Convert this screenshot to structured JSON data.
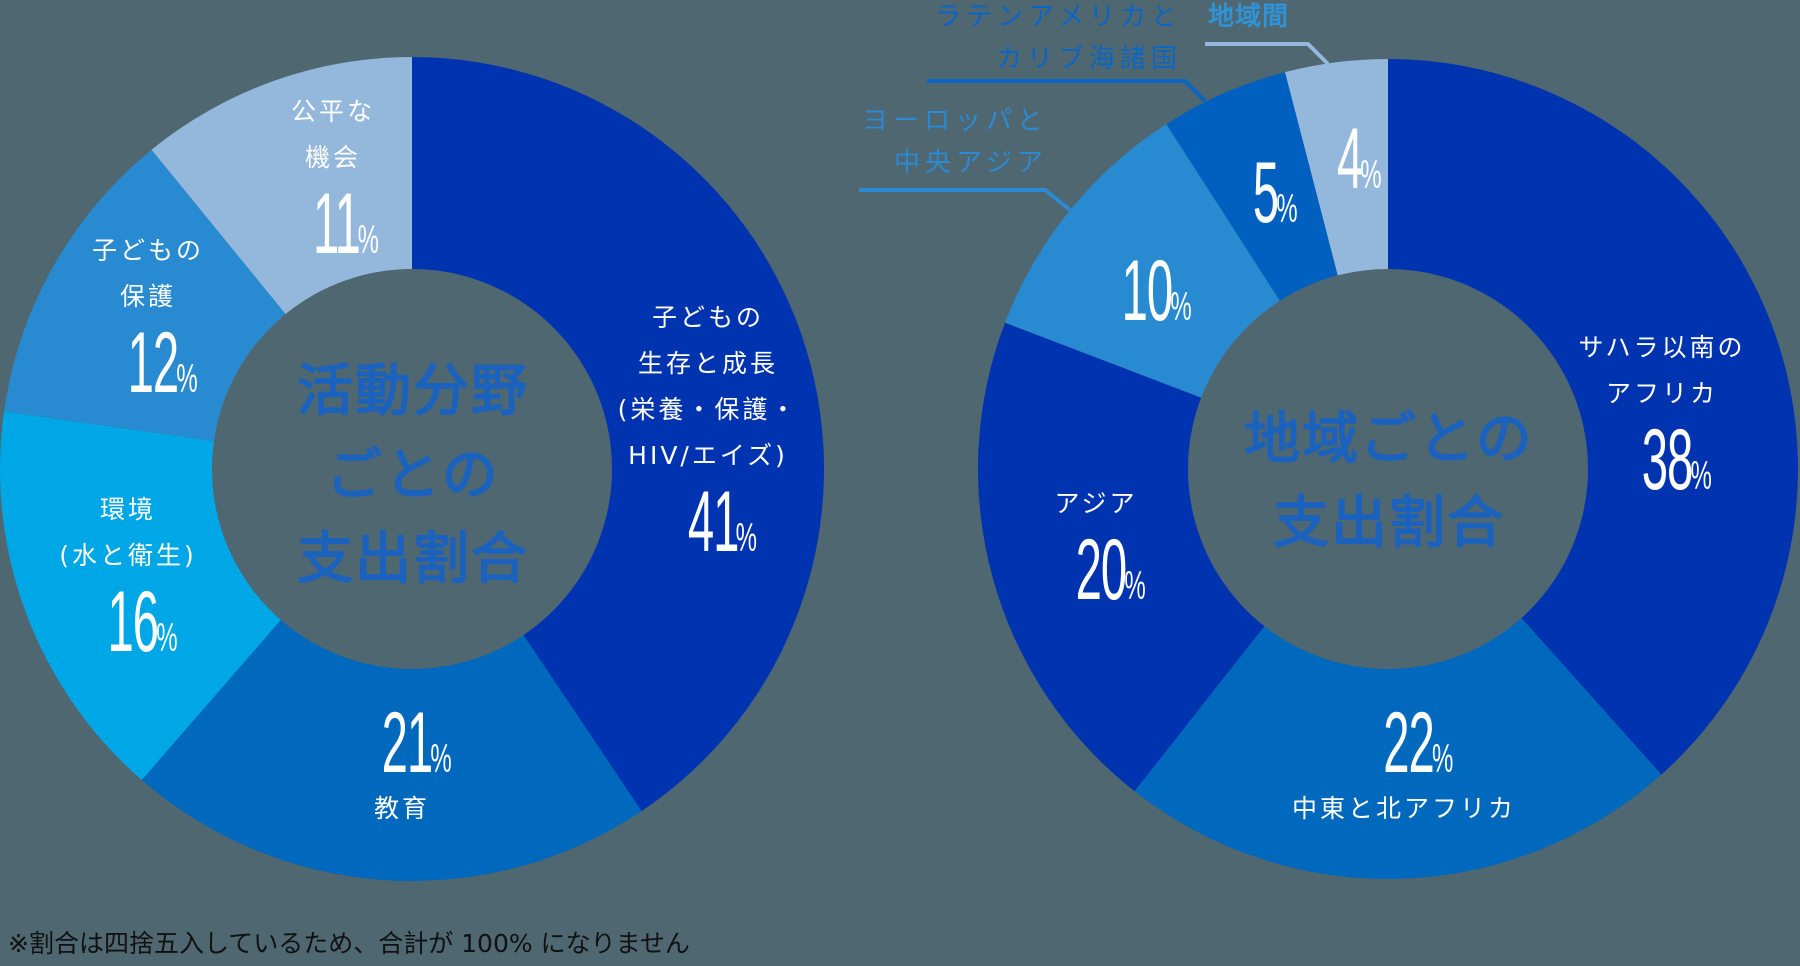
{
  "chart_data": [
    {
      "type": "pie",
      "variant": "donut",
      "title": "活動分野ごとの支出割合",
      "categories": [
        "子どもの生存と成長（栄養・保護・HIV/エイズ）",
        "教育",
        "環境（水と衛生）",
        "子どもの保護",
        "公平な機会"
      ],
      "values": [
        41,
        21,
        16,
        12,
        11
      ],
      "unit": "%",
      "colors": [
        "#0033b0",
        "#0068bd",
        "#00a7e6",
        "#288ad0",
        "#94b7dc"
      ],
      "start_angle_deg": 0,
      "direction": "clockwise"
    },
    {
      "type": "pie",
      "variant": "donut",
      "title": "地域ごとの支出割合",
      "categories": [
        "サハラ以南のアフリカ",
        "中東と北アフリカ",
        "アジア",
        "ヨーロッパと中央アジア",
        "ラテンアメリカとカリブ海諸国",
        "地域間"
      ],
      "values": [
        38,
        22,
        20,
        10,
        5,
        4
      ],
      "unit": "%",
      "colors": [
        "#0033b0",
        "#0068bd",
        "#0033b0",
        "#288ad0",
        "#0060c0",
        "#94b7dc"
      ],
      "start_angle_deg": 0,
      "direction": "clockwise"
    }
  ],
  "colors": {
    "background": "#4f6770",
    "title_text": "#1a62bd",
    "label_text": "#ffffff",
    "europe_label": "#2b8ad3",
    "latin_label": "#0a66c4",
    "interregional_label": "#2f93d8",
    "note_text": "#111111"
  },
  "left": {
    "center_title": [
      "活動分野",
      "ごとの",
      "支出割合"
    ],
    "labels": {
      "survival": {
        "lines": [
          "子どもの",
          "生存と成長",
          "(栄養・保護・",
          "HIV/エイズ)"
        ],
        "pct": "41",
        "sym": "%"
      },
      "education": {
        "lines": [
          "教育"
        ],
        "pct": "21",
        "sym": "%"
      },
      "environment": {
        "lines": [
          "環境",
          "(水と衛生)"
        ],
        "pct": "16",
        "sym": "%"
      },
      "protection": {
        "lines": [
          "子どもの",
          "保護"
        ],
        "pct": "12",
        "sym": "%"
      },
      "equity": {
        "lines": [
          "公平な",
          "機会"
        ],
        "pct": "11",
        "sym": "%"
      }
    }
  },
  "right": {
    "center_title": [
      "地域ごとの",
      "支出割合"
    ],
    "labels": {
      "ssa": {
        "lines": [
          "サハラ以南の",
          "アフリカ"
        ],
        "pct": "38",
        "sym": "%"
      },
      "mena": {
        "lines": [
          "中東と北アフリカ"
        ],
        "pct": "22",
        "sym": "%"
      },
      "asia": {
        "lines": [
          "アジア"
        ],
        "pct": "20",
        "sym": "%"
      },
      "europe": {
        "lines": [
          "ヨーロッパと",
          "中央アジア"
        ],
        "pct": "10",
        "sym": "%"
      },
      "latin": {
        "lines": [
          "ラテンアメリカと",
          "カリブ海諸国"
        ],
        "pct": "5",
        "sym": "%"
      },
      "inter": {
        "lines": [
          "地域間"
        ],
        "pct": "4",
        "sym": "%"
      }
    }
  },
  "note": "※割合は四捨五入しているため、合計が 100% になりません"
}
